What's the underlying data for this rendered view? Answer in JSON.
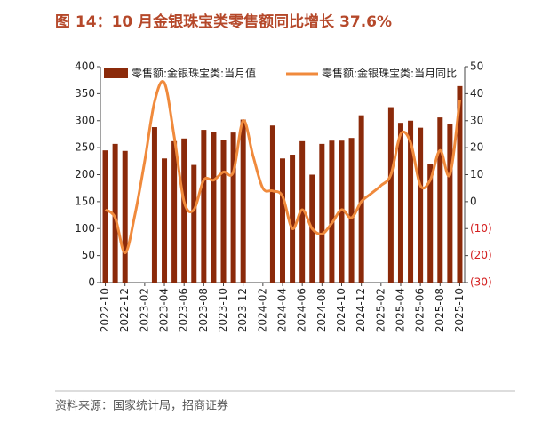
{
  "chart_data": {
    "type": "bar_line",
    "title": "图 14：10 月金银珠宝类零售额同比增长 37.6%",
    "source": "资料来源：国家统计局，招商证券",
    "categories": [
      "2022-10",
      null,
      "2022-12",
      null,
      "2023-02",
      null,
      "2023-04",
      null,
      "2023-06",
      null,
      "2023-08",
      null,
      "2023-10",
      null,
      "2023-12",
      null,
      "2024-02",
      null,
      "2024-04",
      null,
      "2024-06",
      null,
      "2024-08",
      null,
      "2024-10",
      null,
      "2024-12",
      null,
      "2025-02",
      null,
      "2025-04",
      null,
      "2025-06",
      null,
      "2025-08",
      null,
      "2025-10"
    ],
    "series": [
      {
        "name": "零售额:金银珠宝类:当月值",
        "color": "#8b2a0a",
        "values": [
          245,
          257,
          244,
          null,
          null,
          288,
          230,
          262,
          267,
          218,
          283,
          279,
          264,
          278,
          302,
          null,
          null,
          291,
          230,
          237,
          262,
          200,
          257,
          263,
          263,
          268,
          310,
          null,
          null,
          325,
          296,
          300,
          287,
          220,
          306,
          293,
          364
        ]
      },
      {
        "name": "零售额:金银珠宝类:当月同比",
        "color": "#f08a3c",
        "axis": "y2",
        "values": [
          -3,
          -6,
          -19,
          -5,
          15,
          37,
          44,
          24,
          0,
          -3,
          8,
          8,
          11,
          11,
          30,
          17,
          5,
          4,
          2,
          -10,
          -3,
          -10,
          -12,
          -8,
          -3,
          -6,
          0,
          3,
          6,
          10,
          25,
          22,
          6,
          8,
          19,
          10,
          37.6
        ]
      }
    ],
    "ylim": [
      0,
      400
    ],
    "yticks": [
      0,
      50,
      100,
      150,
      200,
      250,
      300,
      350,
      400
    ],
    "y2lim": [
      -30,
      50
    ],
    "y2ticks": [
      {
        "value": -30,
        "label": "(30)"
      },
      {
        "value": -20,
        "label": "(20)"
      },
      {
        "value": -10,
        "label": "(10)"
      },
      0,
      10,
      20,
      30,
      40,
      50
    ],
    "legend": "top"
  }
}
